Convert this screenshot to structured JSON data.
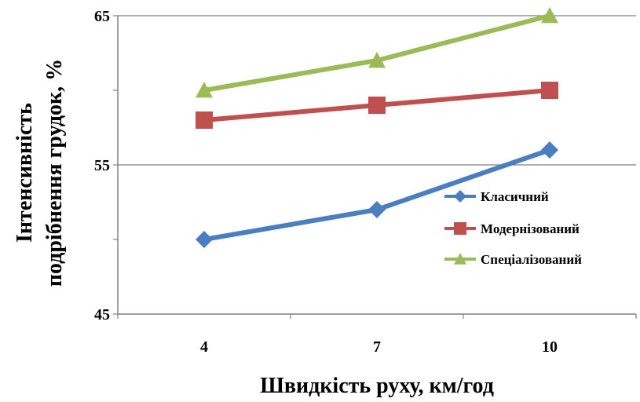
{
  "chart_data": {
    "type": "line",
    "x": [
      4,
      7,
      10
    ],
    "categories": [
      "4",
      "7",
      "10"
    ],
    "ylim": [
      45,
      65
    ],
    "yticks": [
      "45",
      "55",
      "65"
    ],
    "ylabel_line1": "Інтенсивність",
    "ylabel_line2": "подрібнення грудок, %",
    "xlabel": "Швидкість руху, км/год",
    "grid": "horizontal",
    "legend_position": "right",
    "series": [
      {
        "name": "Класичний",
        "values": [
          50,
          52,
          56
        ],
        "color": "#4A7EC1",
        "marker": "diamond"
      },
      {
        "name": "Модернізований",
        "values": [
          58,
          59,
          60
        ],
        "color": "#C0504D",
        "marker": "square"
      },
      {
        "name": "Спеціалізований",
        "values": [
          60,
          62,
          65
        ],
        "color": "#9BBB59",
        "marker": "triangle"
      }
    ]
  }
}
